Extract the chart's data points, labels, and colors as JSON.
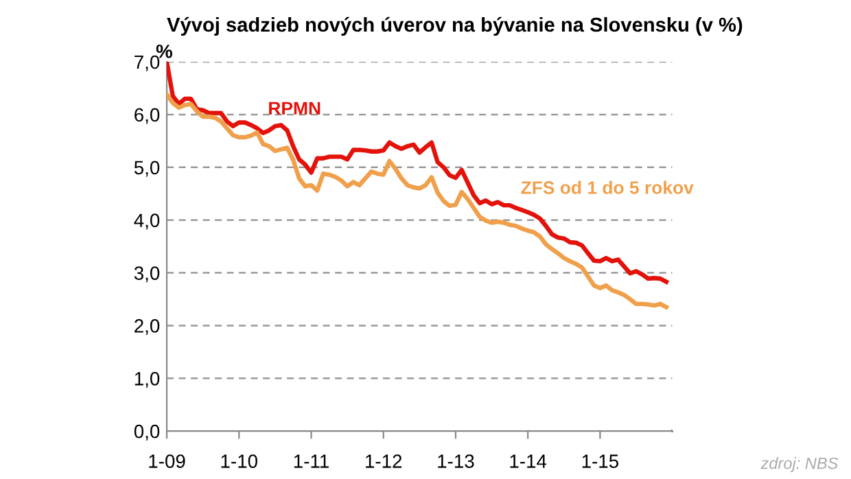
{
  "chart_data": {
    "type": "line",
    "title": "Vývoj sadzieb nových úverov na bývanie na Slovensku (v %)",
    "ylabel": "%",
    "categories": [
      "1-09",
      null,
      null,
      null,
      null,
      null,
      null,
      null,
      null,
      null,
      null,
      null,
      "1-10",
      null,
      null,
      null,
      null,
      null,
      null,
      null,
      null,
      null,
      null,
      null,
      "1-11",
      null,
      null,
      null,
      null,
      null,
      null,
      null,
      null,
      null,
      null,
      null,
      "1-12",
      null,
      null,
      null,
      null,
      null,
      null,
      null,
      null,
      null,
      null,
      null,
      "1-13",
      null,
      null,
      null,
      null,
      null,
      null,
      null,
      null,
      null,
      null,
      null,
      "1-14",
      null,
      null,
      null,
      null,
      null,
      null,
      null,
      null,
      null,
      null,
      null,
      "1-15",
      null,
      null,
      null,
      null,
      null,
      null,
      null,
      null,
      null,
      null,
      null
    ],
    "series": [
      {
        "name": "RPMN",
        "color": "#e3120b",
        "values": [
          7.0,
          6.35,
          6.2,
          6.3,
          6.3,
          6.1,
          6.08,
          6.03,
          6.03,
          6.03,
          5.87,
          5.78,
          5.85,
          5.85,
          5.8,
          5.74,
          5.65,
          5.7,
          5.78,
          5.8,
          5.7,
          5.4,
          5.15,
          5.05,
          4.9,
          5.17,
          5.17,
          5.2,
          5.2,
          5.2,
          5.15,
          5.33,
          5.33,
          5.32,
          5.3,
          5.3,
          5.32,
          5.47,
          5.4,
          5.35,
          5.4,
          5.43,
          5.28,
          5.38,
          5.47,
          5.1,
          5.0,
          4.85,
          4.8,
          4.95,
          4.71,
          4.47,
          4.32,
          4.37,
          4.3,
          4.34,
          4.28,
          4.28,
          4.23,
          4.19,
          4.15,
          4.1,
          4.03,
          3.89,
          3.73,
          3.67,
          3.65,
          3.58,
          3.57,
          3.52,
          3.37,
          3.23,
          3.22,
          3.28,
          3.22,
          3.25,
          3.12,
          2.99,
          3.03,
          2.97,
          2.89,
          2.9,
          2.89,
          2.83
        ]
      },
      {
        "name": "ZFS od 1 do 5 rokov",
        "color": "#f0a04b",
        "values": [
          6.38,
          6.22,
          6.13,
          6.18,
          6.2,
          6.06,
          5.96,
          5.96,
          5.94,
          5.87,
          5.74,
          5.61,
          5.57,
          5.57,
          5.6,
          5.66,
          5.44,
          5.4,
          5.31,
          5.34,
          5.37,
          5.14,
          4.79,
          4.64,
          4.66,
          4.56,
          4.88,
          4.86,
          4.82,
          4.75,
          4.64,
          4.72,
          4.66,
          4.79,
          4.92,
          4.88,
          4.86,
          5.12,
          4.97,
          4.79,
          4.66,
          4.62,
          4.6,
          4.66,
          4.81,
          4.52,
          4.36,
          4.27,
          4.29,
          4.53,
          4.4,
          4.23,
          4.06,
          3.99,
          3.95,
          3.97,
          3.95,
          3.91,
          3.89,
          3.84,
          3.8,
          3.77,
          3.69,
          3.54,
          3.45,
          3.37,
          3.28,
          3.22,
          3.17,
          3.1,
          2.93,
          2.76,
          2.71,
          2.76,
          2.67,
          2.63,
          2.58,
          2.5,
          2.41,
          2.41,
          2.4,
          2.38,
          2.41,
          2.35
        ]
      }
    ],
    "ylim": [
      0,
      7
    ],
    "yticks": [
      {
        "value": 0,
        "label": "0,0"
      },
      {
        "value": 1,
        "label": "1,0"
      },
      {
        "value": 2,
        "label": "2,0"
      },
      {
        "value": 3,
        "label": "3,0"
      },
      {
        "value": 4,
        "label": "4,0"
      },
      {
        "value": 5,
        "label": "5,0"
      },
      {
        "value": 6,
        "label": "6,0"
      },
      {
        "value": 7,
        "label": "7,0"
      }
    ],
    "grid": "y",
    "legend": false,
    "marker": "none",
    "line_style": "solid",
    "annotations": [
      "zdroj: NBS"
    ]
  }
}
